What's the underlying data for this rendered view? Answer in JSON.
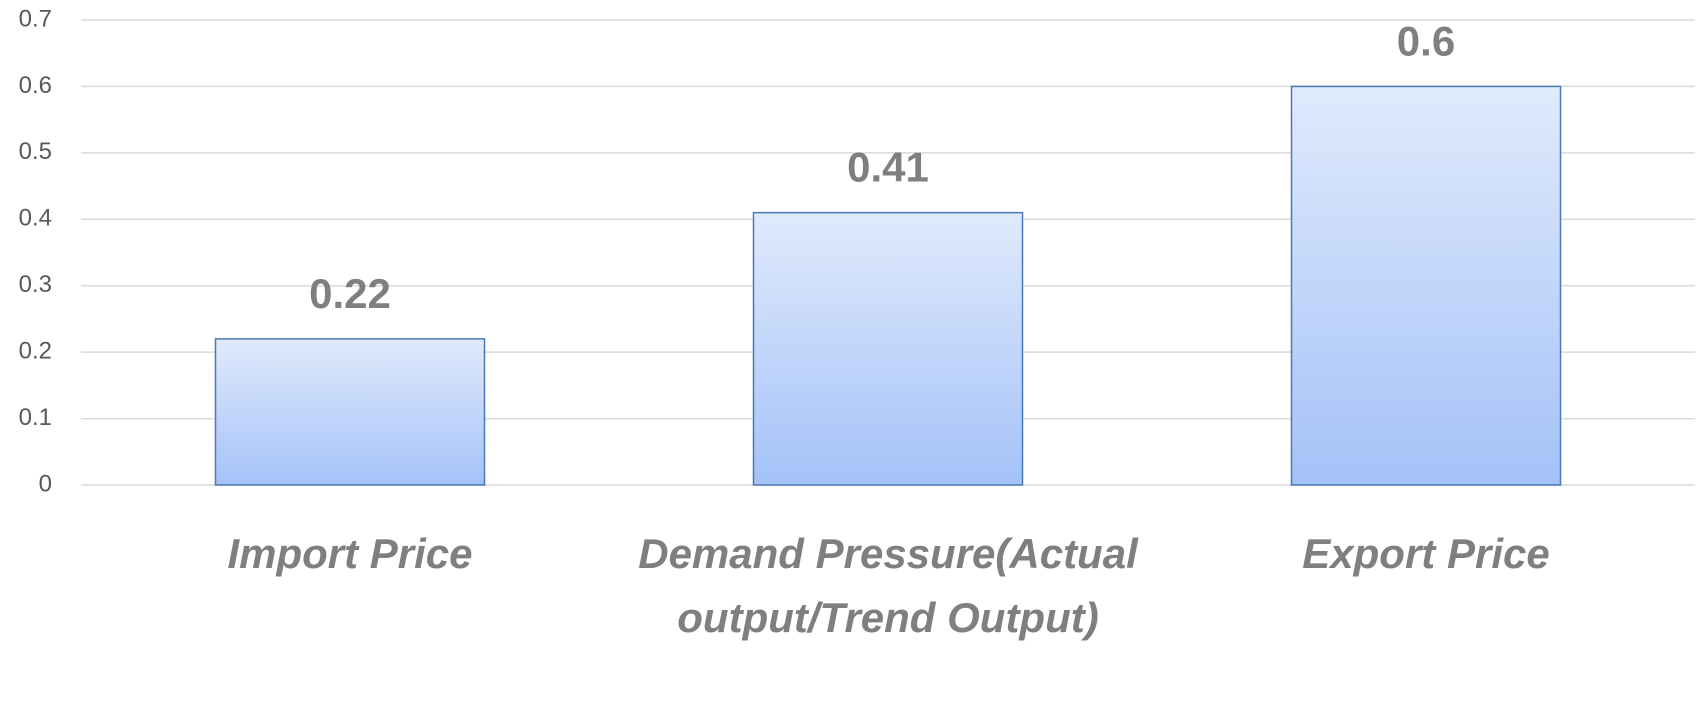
{
  "chart_data": {
    "type": "bar",
    "categories": [
      "Import Price",
      "Demand Pressure(Actual output/Trend Output)",
      "Export Price"
    ],
    "values": [
      0.22,
      0.41,
      0.6
    ],
    "color": "#a4c2f8",
    "ylim": [
      0,
      0.7
    ],
    "yticks": [
      0,
      0.1,
      0.2,
      0.3,
      0.4,
      0.5,
      0.6,
      0.7
    ],
    "grid": true
  }
}
